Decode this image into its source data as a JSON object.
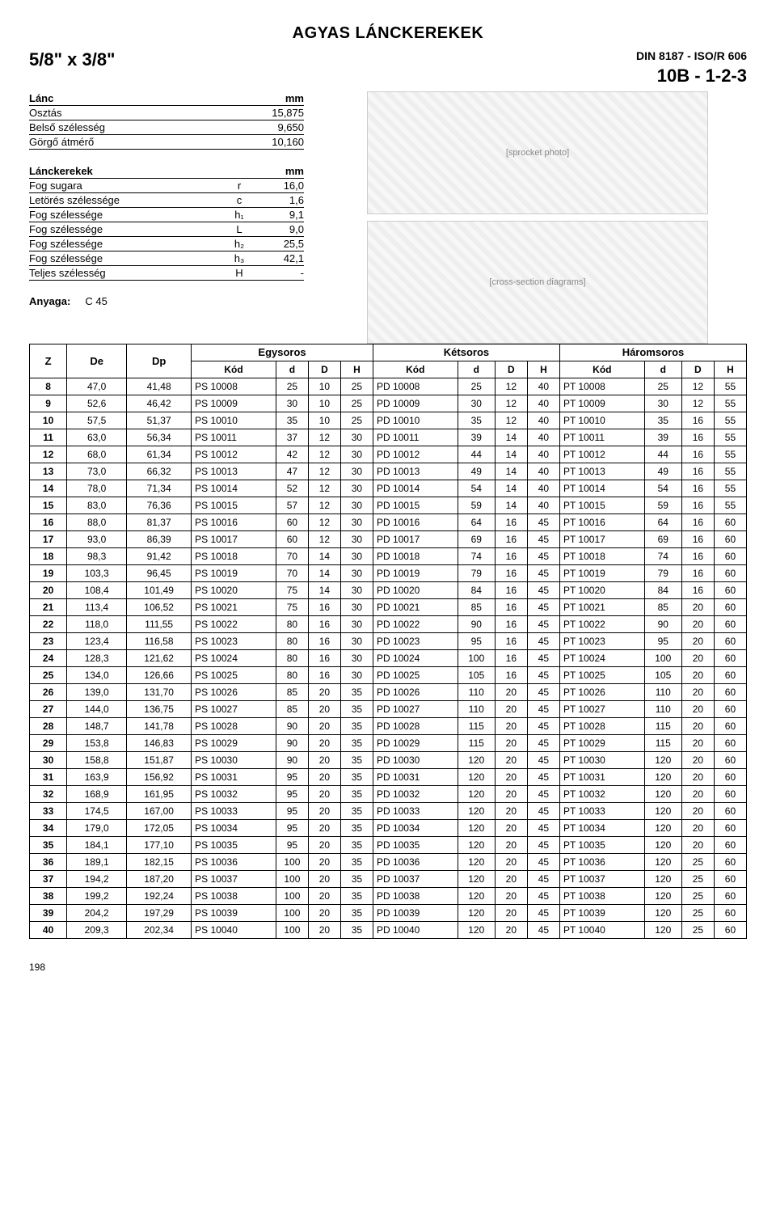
{
  "page_title": "AGYAS LÁNCKEREKEK",
  "size": "5/8\" x 3/8\"",
  "din": "DIN 8187 - ISO/R 606",
  "model": "10B - 1-2-3",
  "chain_block": {
    "header": [
      "Lánc",
      "",
      "mm"
    ],
    "rows": [
      [
        "Osztás",
        "",
        "15,875"
      ],
      [
        "Belső szélesség",
        "",
        "9,650"
      ],
      [
        "Görgő átmérő",
        "",
        "10,160"
      ]
    ]
  },
  "sprocket_block": {
    "header": [
      "Lánckerekek",
      "",
      "mm"
    ],
    "rows": [
      [
        "Fog sugara",
        "r",
        "16,0"
      ],
      [
        "Letörés szélessége",
        "c",
        "1,6"
      ],
      [
        "Fog szélessége",
        "h₁",
        "9,1"
      ],
      [
        "Fog szélessége",
        "L",
        "9,0"
      ],
      [
        "Fog szélessége",
        "h₂",
        "25,5"
      ],
      [
        "Fog szélessége",
        "h₃",
        "42,1"
      ],
      [
        "Teljes szélesség",
        "H",
        "-"
      ]
    ]
  },
  "material_label": "Anyaga:",
  "material_value": "C 45",
  "image_captions": [
    "[sprocket photo]",
    "[cross-section diagrams]"
  ],
  "table": {
    "group_headers": [
      "Z",
      "De",
      "Dp",
      "Egysoros",
      "Kétsoros",
      "Háromsoros"
    ],
    "sub_headers": [
      "Kód",
      "d",
      "D",
      "H",
      "Kód",
      "d",
      "D",
      "H",
      "Kód",
      "d",
      "D",
      "H"
    ],
    "rows": [
      [
        8,
        "47,0",
        "41,48",
        "PS 10008",
        25,
        10,
        25,
        "PD 10008",
        25,
        12,
        40,
        "PT 10008",
        25,
        12,
        55
      ],
      [
        9,
        "52,6",
        "46,42",
        "PS 10009",
        30,
        10,
        25,
        "PD 10009",
        30,
        12,
        40,
        "PT 10009",
        30,
        12,
        55
      ],
      [
        10,
        "57,5",
        "51,37",
        "PS 10010",
        35,
        10,
        25,
        "PD 10010",
        35,
        12,
        40,
        "PT 10010",
        35,
        16,
        55
      ],
      [
        11,
        "63,0",
        "56,34",
        "PS 10011",
        37,
        12,
        30,
        "PD 10011",
        39,
        14,
        40,
        "PT 10011",
        39,
        16,
        55
      ],
      [
        12,
        "68,0",
        "61,34",
        "PS 10012",
        42,
        12,
        30,
        "PD 10012",
        44,
        14,
        40,
        "PT 10012",
        44,
        16,
        55
      ],
      [
        13,
        "73,0",
        "66,32",
        "PS 10013",
        47,
        12,
        30,
        "PD 10013",
        49,
        14,
        40,
        "PT 10013",
        49,
        16,
        55
      ],
      [
        14,
        "78,0",
        "71,34",
        "PS 10014",
        52,
        12,
        30,
        "PD 10014",
        54,
        14,
        40,
        "PT 10014",
        54,
        16,
        55
      ],
      [
        15,
        "83,0",
        "76,36",
        "PS 10015",
        57,
        12,
        30,
        "PD 10015",
        59,
        14,
        40,
        "PT 10015",
        59,
        16,
        55
      ],
      [
        16,
        "88,0",
        "81,37",
        "PS 10016",
        60,
        12,
        30,
        "PD 10016",
        64,
        16,
        45,
        "PT 10016",
        64,
        16,
        60
      ],
      [
        17,
        "93,0",
        "86,39",
        "PS 10017",
        60,
        12,
        30,
        "PD 10017",
        69,
        16,
        45,
        "PT 10017",
        69,
        16,
        60
      ],
      [
        18,
        "98,3",
        "91,42",
        "PS 10018",
        70,
        14,
        30,
        "PD 10018",
        74,
        16,
        45,
        "PT 10018",
        74,
        16,
        60
      ],
      [
        19,
        "103,3",
        "96,45",
        "PS 10019",
        70,
        14,
        30,
        "PD 10019",
        79,
        16,
        45,
        "PT 10019",
        79,
        16,
        60
      ],
      [
        20,
        "108,4",
        "101,49",
        "PS 10020",
        75,
        14,
        30,
        "PD 10020",
        84,
        16,
        45,
        "PT 10020",
        84,
        16,
        60
      ],
      [
        21,
        "113,4",
        "106,52",
        "PS 10021",
        75,
        16,
        30,
        "PD 10021",
        85,
        16,
        45,
        "PT 10021",
        85,
        20,
        60
      ],
      [
        22,
        "118,0",
        "111,55",
        "PS 10022",
        80,
        16,
        30,
        "PD 10022",
        90,
        16,
        45,
        "PT 10022",
        90,
        20,
        60
      ],
      [
        23,
        "123,4",
        "116,58",
        "PS 10023",
        80,
        16,
        30,
        "PD 10023",
        95,
        16,
        45,
        "PT 10023",
        95,
        20,
        60
      ],
      [
        24,
        "128,3",
        "121,62",
        "PS 10024",
        80,
        16,
        30,
        "PD 10024",
        100,
        16,
        45,
        "PT 10024",
        100,
        20,
        60
      ],
      [
        25,
        "134,0",
        "126,66",
        "PS 10025",
        80,
        16,
        30,
        "PD 10025",
        105,
        16,
        45,
        "PT 10025",
        105,
        20,
        60
      ],
      [
        26,
        "139,0",
        "131,70",
        "PS 10026",
        85,
        20,
        35,
        "PD 10026",
        110,
        20,
        45,
        "PT 10026",
        110,
        20,
        60
      ],
      [
        27,
        "144,0",
        "136,75",
        "PS 10027",
        85,
        20,
        35,
        "PD 10027",
        110,
        20,
        45,
        "PT 10027",
        110,
        20,
        60
      ],
      [
        28,
        "148,7",
        "141,78",
        "PS 10028",
        90,
        20,
        35,
        "PD 10028",
        115,
        20,
        45,
        "PT 10028",
        115,
        20,
        60
      ],
      [
        29,
        "153,8",
        "146,83",
        "PS 10029",
        90,
        20,
        35,
        "PD 10029",
        115,
        20,
        45,
        "PT 10029",
        115,
        20,
        60
      ],
      [
        30,
        "158,8",
        "151,87",
        "PS 10030",
        90,
        20,
        35,
        "PD 10030",
        120,
        20,
        45,
        "PT 10030",
        120,
        20,
        60
      ],
      [
        31,
        "163,9",
        "156,92",
        "PS 10031",
        95,
        20,
        35,
        "PD 10031",
        120,
        20,
        45,
        "PT 10031",
        120,
        20,
        60
      ],
      [
        32,
        "168,9",
        "161,95",
        "PS 10032",
        95,
        20,
        35,
        "PD 10032",
        120,
        20,
        45,
        "PT 10032",
        120,
        20,
        60
      ],
      [
        33,
        "174,5",
        "167,00",
        "PS 10033",
        95,
        20,
        35,
        "PD 10033",
        120,
        20,
        45,
        "PT 10033",
        120,
        20,
        60
      ],
      [
        34,
        "179,0",
        "172,05",
        "PS 10034",
        95,
        20,
        35,
        "PD 10034",
        120,
        20,
        45,
        "PT 10034",
        120,
        20,
        60
      ],
      [
        35,
        "184,1",
        "177,10",
        "PS 10035",
        95,
        20,
        35,
        "PD 10035",
        120,
        20,
        45,
        "PT 10035",
        120,
        20,
        60
      ],
      [
        36,
        "189,1",
        "182,15",
        "PS 10036",
        100,
        20,
        35,
        "PD 10036",
        120,
        20,
        45,
        "PT 10036",
        120,
        25,
        60
      ],
      [
        37,
        "194,2",
        "187,20",
        "PS 10037",
        100,
        20,
        35,
        "PD 10037",
        120,
        20,
        45,
        "PT 10037",
        120,
        25,
        60
      ],
      [
        38,
        "199,2",
        "192,24",
        "PS 10038",
        100,
        20,
        35,
        "PD 10038",
        120,
        20,
        45,
        "PT 10038",
        120,
        25,
        60
      ],
      [
        39,
        "204,2",
        "197,29",
        "PS 10039",
        100,
        20,
        35,
        "PD 10039",
        120,
        20,
        45,
        "PT 10039",
        120,
        25,
        60
      ],
      [
        40,
        "209,3",
        "202,34",
        "PS 10040",
        100,
        20,
        35,
        "PD 10040",
        120,
        20,
        45,
        "PT 10040",
        120,
        25,
        60
      ]
    ],
    "col_widths": [
      "30px",
      "48px",
      "52px",
      "68px",
      "26px",
      "26px",
      "26px",
      "68px",
      "30px",
      "26px",
      "26px",
      "68px",
      "30px",
      "26px",
      "26px"
    ]
  },
  "page_number": "198"
}
